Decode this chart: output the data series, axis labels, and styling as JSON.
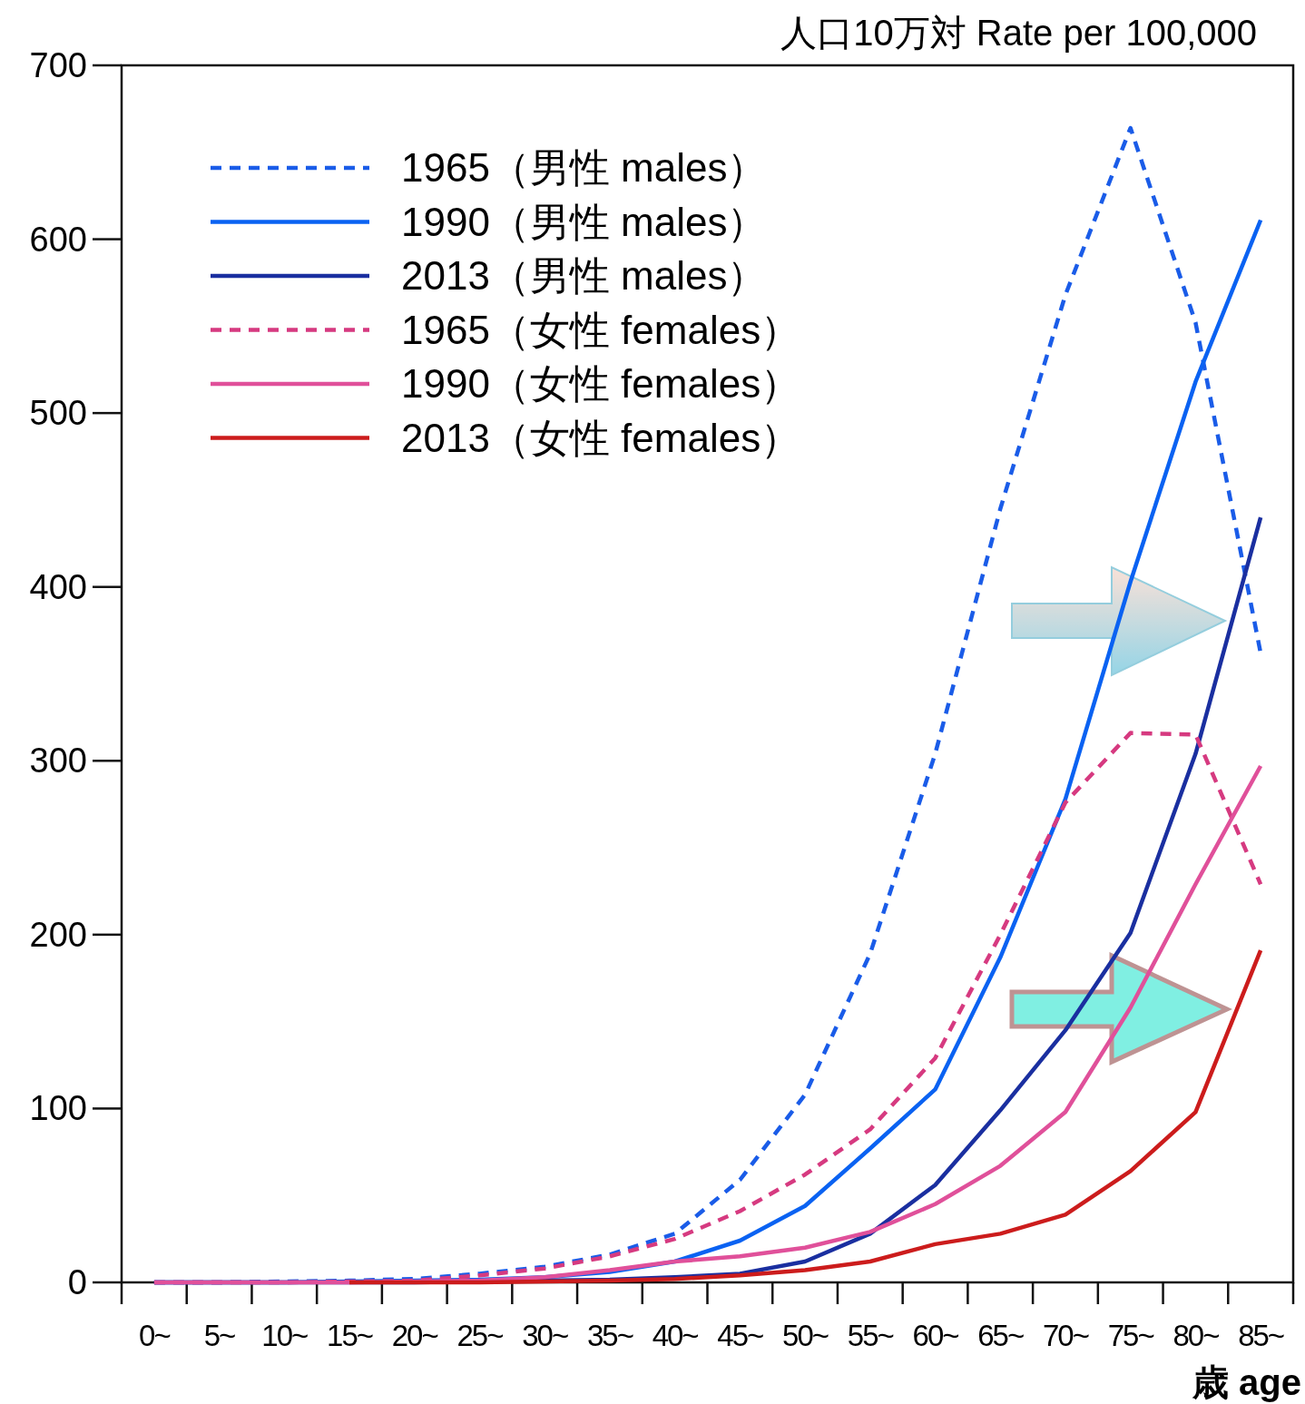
{
  "chart_data": {
    "type": "line",
    "title": "人口10万対 Rate per 100,000",
    "xlabel": "歳 age",
    "categories": [
      "0~",
      "5~",
      "10~",
      "15~",
      "20~",
      "25~",
      "30~",
      "35~",
      "40~",
      "45~",
      "50~",
      "55~",
      "60~",
      "65~",
      "70~",
      "75~",
      "80~",
      "85~"
    ],
    "ylim": [
      0,
      700
    ],
    "yticks": [
      0,
      100,
      200,
      300,
      400,
      500,
      600,
      700
    ],
    "grid": false,
    "legend": "top left",
    "series": [
      {
        "name": "1965（男性 males）",
        "color": "#1a5ce8",
        "line_style": "dashed",
        "values": [
          0,
          0,
          0.5,
          1,
          2,
          5,
          9,
          16,
          28,
          59,
          108,
          189,
          304,
          445,
          568,
          664,
          552,
          362
        ]
      },
      {
        "name": "1990（男性 males）",
        "color": "#0a62f2",
        "line_style": "solid",
        "values": [
          0,
          0,
          0,
          0.5,
          1,
          1.5,
          3,
          6,
          12,
          24,
          44,
          77,
          111,
          187,
          278,
          403,
          518,
          611
        ]
      },
      {
        "name": "2013（男性 males）",
        "color": "#1a2fa0",
        "line_style": "solid",
        "values": [
          0,
          0,
          0,
          0,
          0,
          0.5,
          1,
          1.5,
          3,
          5,
          12,
          28,
          56,
          99,
          145,
          201,
          304,
          440
        ]
      },
      {
        "name": "1965（女性 females）",
        "color": "#d63a80",
        "line_style": "dashed",
        "values": [
          0,
          0,
          0,
          0.5,
          1,
          4,
          8,
          15,
          25,
          41,
          62,
          88,
          129,
          200,
          276,
          316,
          315,
          229
        ]
      },
      {
        "name": "1990（女性 females）",
        "color": "#e0509a",
        "line_style": "solid",
        "values": [
          0,
          0,
          0,
          0,
          0.5,
          1,
          3,
          7,
          12,
          15,
          20,
          29,
          45,
          67,
          98,
          158,
          229,
          297
        ]
      },
      {
        "name": "2013（女性 females）",
        "color": "#cc1c1c",
        "line_style": "solid",
        "values": [
          null,
          null,
          null,
          0,
          0,
          0,
          0.5,
          1,
          2,
          4,
          7,
          12,
          22,
          28,
          39,
          64,
          98,
          191
        ]
      }
    ]
  }
}
